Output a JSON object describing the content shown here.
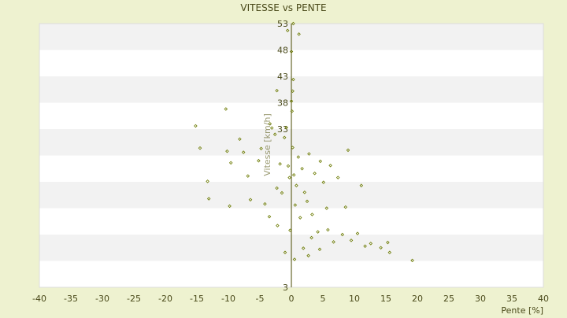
{
  "chart_data": {
    "type": "scatter",
    "title": "VITESSE vs PENTE",
    "xlabel": "Pente [%]",
    "ylabel": "Vitesse [km/h]",
    "xlim": [
      -40,
      40
    ],
    "ylim": [
      3,
      53
    ],
    "x_ticks": [
      -40,
      -35,
      -30,
      -25,
      -20,
      -15,
      -10,
      -5,
      0,
      5,
      10,
      15,
      20,
      25,
      30,
      35,
      40
    ],
    "y_ticks": [
      3,
      8,
      13,
      18,
      23,
      28,
      33,
      38,
      43,
      48,
      53
    ],
    "y_tick_labels_shown": [
      3,
      33,
      38,
      43,
      48,
      53
    ],
    "grid": "horizontal alternating bands",
    "legend": "none",
    "colors": {
      "page_bg": "#eef2d0",
      "plot_band_light": "#ffffff",
      "plot_band_dark": "#f2f2f2",
      "axis": "#4a4a00",
      "marker": "#6b7a00",
      "text": "#4a4a1a"
    },
    "series": [
      {
        "points": [
          [
            -15.2,
            33.6
          ],
          [
            -14.5,
            29.4
          ],
          [
            -13.1,
            19.8
          ],
          [
            -13.3,
            23.1
          ],
          [
            -10.4,
            36.8
          ],
          [
            -10.2,
            28.8
          ],
          [
            -9.6,
            26.6
          ],
          [
            -9.8,
            18.4
          ],
          [
            -8.2,
            31.1
          ],
          [
            -7.6,
            28.6
          ],
          [
            -6.9,
            24.1
          ],
          [
            -6.5,
            19.6
          ],
          [
            -5.2,
            27.0
          ],
          [
            -4.8,
            29.3
          ],
          [
            -3.4,
            34.0
          ],
          [
            -3.1,
            33.2
          ],
          [
            -2.6,
            32.0
          ],
          [
            -2.3,
            21.8
          ],
          [
            -1.8,
            26.4
          ],
          [
            -1.5,
            20.9
          ],
          [
            -1.1,
            31.4
          ],
          [
            -0.8,
            33.3
          ],
          [
            -0.5,
            26.0
          ],
          [
            -0.3,
            23.8
          ],
          [
            0.0,
            38.3
          ],
          [
            0.1,
            36.4
          ],
          [
            0.2,
            29.5
          ],
          [
            0.4,
            24.3
          ],
          [
            0.6,
            18.6
          ],
          [
            0.8,
            22.3
          ],
          [
            1.1,
            27.7
          ],
          [
            1.4,
            16.2
          ],
          [
            1.7,
            25.5
          ],
          [
            2.1,
            21.0
          ],
          [
            2.5,
            19.3
          ],
          [
            2.8,
            28.3
          ],
          [
            3.3,
            16.8
          ],
          [
            3.7,
            24.6
          ],
          [
            4.2,
            13.5
          ],
          [
            4.6,
            26.9
          ],
          [
            5.1,
            22.9
          ],
          [
            5.6,
            18.0
          ],
          [
            6.2,
            26.1
          ],
          [
            6.7,
            11.6
          ],
          [
            7.4,
            23.8
          ],
          [
            8.1,
            13.0
          ],
          [
            8.6,
            18.2
          ],
          [
            9.0,
            29.0
          ],
          [
            9.5,
            11.9
          ],
          [
            10.5,
            13.2
          ],
          [
            11.1,
            22.3
          ],
          [
            11.7,
            10.8
          ],
          [
            12.6,
            11.3
          ],
          [
            14.2,
            10.5
          ],
          [
            15.3,
            11.5
          ],
          [
            15.6,
            9.6
          ],
          [
            19.2,
            8.1
          ],
          [
            0.3,
            53.0
          ],
          [
            -0.6,
            51.7
          ],
          [
            1.2,
            51.0
          ],
          [
            0.0,
            47.7
          ],
          [
            0.3,
            42.4
          ],
          [
            0.2,
            40.2
          ],
          [
            -2.3,
            40.3
          ],
          [
            -0.2,
            13.8
          ],
          [
            0.5,
            8.3
          ],
          [
            1.9,
            10.4
          ],
          [
            -1.0,
            9.6
          ],
          [
            2.7,
            9.0
          ],
          [
            -2.2,
            14.7
          ],
          [
            3.2,
            12.4
          ],
          [
            -3.5,
            16.4
          ],
          [
            4.5,
            10.2
          ],
          [
            -4.2,
            18.8
          ],
          [
            5.8,
            13.9
          ]
        ]
      }
    ]
  }
}
